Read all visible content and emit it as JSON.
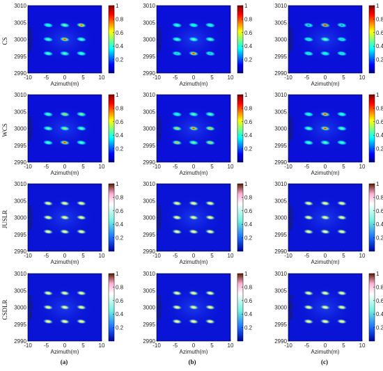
{
  "figure": {
    "row_labels": [
      "CS",
      "WCS",
      "JUSLR",
      "CSDLR"
    ],
    "column_labels": [
      "(a)",
      "(b)",
      "(c)"
    ]
  },
  "chart_data": {
    "type": "heatmap",
    "xlabel": "Azimuth(m)",
    "ylabel": "Range(m)",
    "xlim": [
      -10,
      10
    ],
    "ylim": [
      2990,
      3010
    ],
    "x_ticks": [
      "-10",
      "-5",
      "0",
      "5",
      "10"
    ],
    "y_ticks": [
      "2990",
      "2995",
      "3000",
      "3005",
      "3010"
    ],
    "colorbar": {
      "range": [
        0,
        1
      ],
      "ticks": [
        "0.2",
        "0.4",
        "0.6",
        "0.8",
        "1"
      ]
    },
    "targets": {
      "x": [
        -4.5,
        0,
        4.5
      ],
      "y": [
        2995.8,
        3000,
        3004.2
      ]
    },
    "panels": [
      {
        "row": 0,
        "col": 0,
        "colormap": "jet",
        "intensities": [
          [
            0.35,
            0.6,
            0.9
          ],
          [
            0.5,
            0.95,
            0.5
          ],
          [
            0.5,
            0.55,
            0.45
          ]
        ]
      },
      {
        "row": 0,
        "col": 1,
        "colormap": "jet",
        "intensities": [
          [
            0.4,
            0.35,
            0.35
          ],
          [
            0.45,
            0.55,
            0.5
          ],
          [
            0.25,
            0.95,
            0.25
          ]
        ]
      },
      {
        "row": 0,
        "col": 2,
        "colormap": "jet",
        "intensities": [
          [
            0.1,
            1.0,
            0.12
          ],
          [
            0.3,
            0.6,
            0.28
          ],
          [
            0.3,
            0.35,
            0.3
          ]
        ]
      },
      {
        "row": 1,
        "col": 0,
        "colormap": "jet",
        "intensities": [
          [
            0.45,
            0.7,
            0.6
          ],
          [
            0.55,
            0.65,
            0.55
          ],
          [
            0.5,
            0.95,
            0.55
          ]
        ]
      },
      {
        "row": 1,
        "col": 1,
        "colormap": "jet",
        "intensities": [
          [
            0.35,
            0.55,
            0.55
          ],
          [
            0.7,
            0.95,
            0.75
          ],
          [
            0.75,
            0.6,
            0.7
          ]
        ]
      },
      {
        "row": 1,
        "col": 2,
        "colormap": "jet",
        "intensities": [
          [
            0.35,
            0.95,
            0.4
          ],
          [
            0.55,
            0.95,
            0.55
          ],
          [
            0.45,
            0.55,
            0.45
          ]
        ]
      },
      {
        "row": 2,
        "col": 0,
        "colormap": "thermal",
        "intensities": [
          [
            0.6,
            0.6,
            0.6
          ],
          [
            0.6,
            0.65,
            0.65
          ],
          [
            0.6,
            0.6,
            0.6
          ]
        ]
      },
      {
        "row": 2,
        "col": 1,
        "colormap": "thermal",
        "intensities": [
          [
            0.55,
            0.55,
            0.55
          ],
          [
            0.55,
            0.55,
            0.55
          ],
          [
            0.6,
            0.65,
            0.6
          ]
        ]
      },
      {
        "row": 2,
        "col": 2,
        "colormap": "thermal",
        "intensities": [
          [
            0.55,
            0.6,
            0.6
          ],
          [
            0.55,
            0.6,
            0.55
          ],
          [
            0.55,
            0.55,
            0.55
          ]
        ]
      },
      {
        "row": 3,
        "col": 0,
        "colormap": "thermal",
        "intensities": [
          [
            0.6,
            0.6,
            0.6
          ],
          [
            0.6,
            0.6,
            0.6
          ],
          [
            0.6,
            0.6,
            0.6
          ]
        ]
      },
      {
        "row": 3,
        "col": 1,
        "colormap": "thermal",
        "intensities": [
          [
            0.6,
            0.6,
            0.6
          ],
          [
            0.6,
            0.6,
            0.6
          ],
          [
            0.6,
            0.6,
            0.6
          ]
        ]
      },
      {
        "row": 3,
        "col": 2,
        "colormap": "thermal",
        "intensities": [
          [
            0.6,
            0.6,
            0.6
          ],
          [
            0.6,
            0.6,
            0.6
          ],
          [
            0.6,
            0.6,
            0.6
          ]
        ]
      }
    ]
  }
}
